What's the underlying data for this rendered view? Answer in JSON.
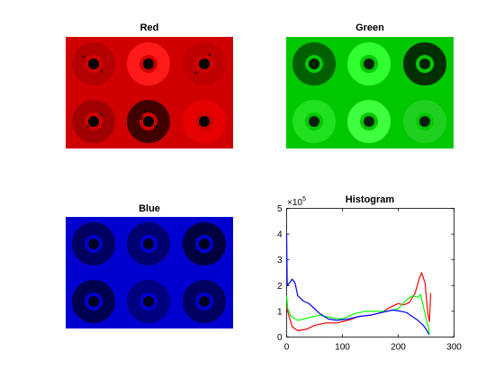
{
  "panels": {
    "red": {
      "title": "Red",
      "color": "#ff0000"
    },
    "green": {
      "title": "Green",
      "color": "#00ff00"
    },
    "blue": {
      "title": "Blue",
      "color": "#0000ff"
    }
  },
  "chart_data": {
    "type": "line",
    "title": "Histogram",
    "xlabel": "",
    "ylabel": "",
    "xlim": [
      0,
      300
    ],
    "ylim": [
      0,
      500000
    ],
    "x_ticks": [
      0,
      100,
      200,
      300
    ],
    "y_ticks": [
      0,
      1,
      2,
      3,
      4,
      5
    ],
    "y_exponent_label": "×10",
    "y_exponent": "5",
    "grid": false,
    "series": [
      {
        "color": "#ff0000",
        "points": [
          [
            0,
            120000
          ],
          [
            3,
            90000
          ],
          [
            10,
            40000
          ],
          [
            20,
            25000
          ],
          [
            35,
            30000
          ],
          [
            50,
            45000
          ],
          [
            70,
            55000
          ],
          [
            90,
            55000
          ],
          [
            110,
            65000
          ],
          [
            130,
            80000
          ],
          [
            150,
            85000
          ],
          [
            170,
            95000
          ],
          [
            185,
            115000
          ],
          [
            200,
            130000
          ],
          [
            210,
            125000
          ],
          [
            220,
            135000
          ],
          [
            230,
            170000
          ],
          [
            238,
            230000
          ],
          [
            242,
            250000
          ],
          [
            248,
            210000
          ],
          [
            253,
            90000
          ],
          [
            256,
            60000
          ],
          [
            258,
            170000
          ]
        ]
      },
      {
        "color": "#00ff00",
        "points": [
          [
            0,
            160000
          ],
          [
            2,
            110000
          ],
          [
            8,
            80000
          ],
          [
            20,
            65000
          ],
          [
            40,
            75000
          ],
          [
            60,
            85000
          ],
          [
            80,
            75000
          ],
          [
            100,
            70000
          ],
          [
            120,
            90000
          ],
          [
            140,
            100000
          ],
          [
            160,
            100000
          ],
          [
            180,
            100000
          ],
          [
            200,
            110000
          ],
          [
            215,
            145000
          ],
          [
            225,
            160000
          ],
          [
            235,
            155000
          ],
          [
            240,
            165000
          ],
          [
            245,
            120000
          ],
          [
            250,
            70000
          ],
          [
            254,
            40000
          ],
          [
            256,
            10000
          ]
        ]
      },
      {
        "color": "#0000ff",
        "points": [
          [
            0,
            400000
          ],
          [
            1,
            200000
          ],
          [
            5,
            210000
          ],
          [
            10,
            225000
          ],
          [
            15,
            210000
          ],
          [
            20,
            160000
          ],
          [
            30,
            140000
          ],
          [
            40,
            130000
          ],
          [
            50,
            110000
          ],
          [
            60,
            90000
          ],
          [
            75,
            70000
          ],
          [
            90,
            65000
          ],
          [
            110,
            70000
          ],
          [
            130,
            80000
          ],
          [
            150,
            85000
          ],
          [
            170,
            95000
          ],
          [
            190,
            105000
          ],
          [
            205,
            100000
          ],
          [
            215,
            95000
          ],
          [
            225,
            80000
          ],
          [
            235,
            65000
          ],
          [
            245,
            45000
          ],
          [
            250,
            30000
          ],
          [
            255,
            10000
          ]
        ]
      }
    ]
  }
}
